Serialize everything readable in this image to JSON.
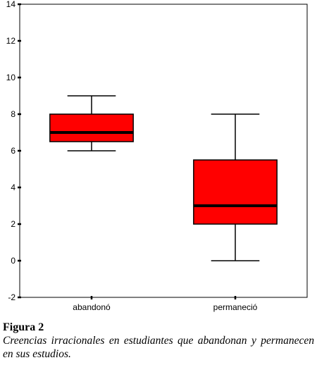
{
  "chart_data": {
    "type": "boxplot",
    "title": "",
    "xlabel": "",
    "ylabel": "",
    "ylim": [
      -2,
      14
    ],
    "yticks": [
      -2,
      0,
      2,
      4,
      6,
      8,
      10,
      12,
      14
    ],
    "yticks_labels": [
      "-2",
      "0",
      "2",
      "4",
      "6",
      "8",
      "10",
      "12",
      "14"
    ],
    "categories": [
      "abandonó",
      "permaneció"
    ],
    "boxes": [
      {
        "category": "abandonó",
        "whisker_low": 6,
        "q1": 6.5,
        "median": 7,
        "q3": 8,
        "whisker_high": 9
      },
      {
        "category": "permaneció",
        "whisker_low": 0,
        "q1": 2,
        "median": 3,
        "q3": 5.5,
        "whisker_high": 8
      }
    ],
    "box_color": "#ff0000",
    "grid": false,
    "legend": "none"
  },
  "caption": {
    "figure_label": "Figura 2",
    "text": "Creencias irracionales en estudiantes que abandonan y permanecen en sus estudios."
  }
}
